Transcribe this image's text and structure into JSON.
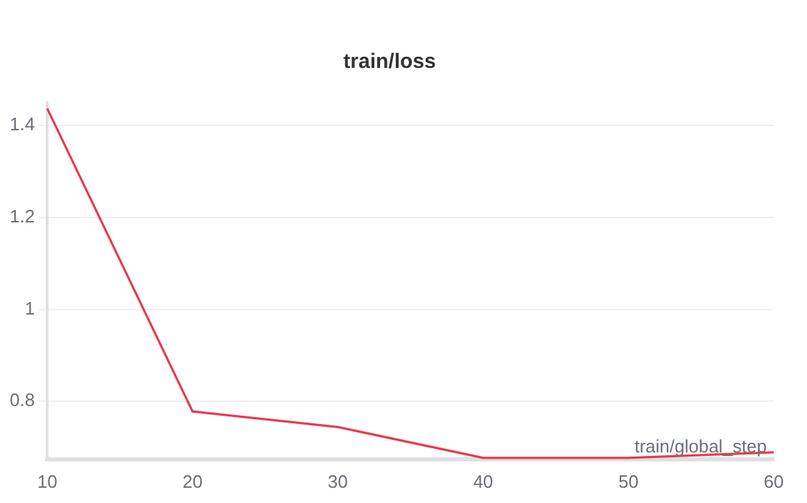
{
  "chart_data": {
    "type": "line",
    "title": "train/loss",
    "xlabel": "train/global_step",
    "x": [
      10,
      20,
      30,
      40,
      50,
      60
    ],
    "series": [
      {
        "color": "#e8394f",
        "values": [
          1.437,
          0.778,
          0.744,
          0.677,
          0.677,
          0.689
        ]
      }
    ],
    "xlim": [
      10,
      60
    ],
    "xticks": [
      10,
      20,
      30,
      40,
      50,
      60
    ],
    "ylim": [
      0.674,
      1.45
    ],
    "yticks": [
      0.8,
      1,
      1.2,
      1.4
    ],
    "grid": "y",
    "legend": false,
    "marker": "none",
    "line_style": "solid"
  }
}
